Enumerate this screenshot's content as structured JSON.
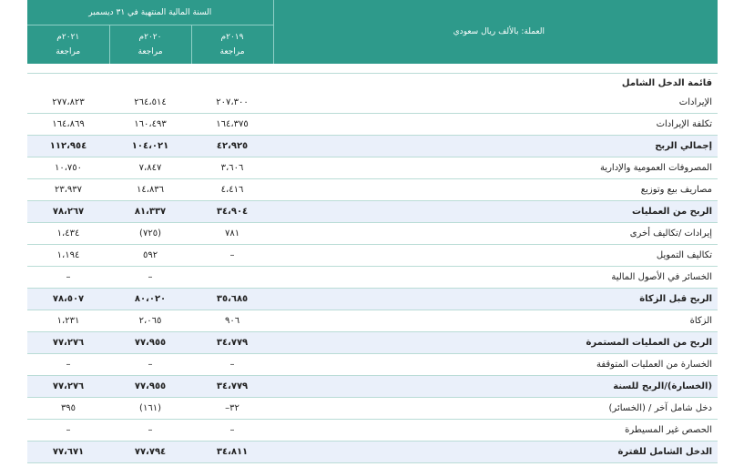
{
  "header": {
    "currency_label": "العملة: بالألف ريال سعودي",
    "period_label": "السنة المالية المنتهية في ٣١ ديسمبر",
    "years": [
      {
        "year": "٢٠١٩م",
        "status": "مراجعة"
      },
      {
        "year": "٢٠٢٠م",
        "status": "مراجعة"
      },
      {
        "year": "٢٠٢١م",
        "status": "مراجعة"
      }
    ]
  },
  "section_title": "قائمة الدخل الشامل",
  "rows": [
    {
      "label": "الإيرادات",
      "v2019": "٢٠٧،٣٠٠",
      "v2020": "٢٦٤،٥١٤",
      "v2021": "٢٧٧،٨٢٣",
      "bold": false
    },
    {
      "label": "تكلفة الإيرادات",
      "v2019": "١٦٤،٣٧٥",
      "v2020": "١٦٠،٤٩٣",
      "v2021": "١٦٤،٨٦٩",
      "bold": false
    },
    {
      "label": "إجمالي الربح",
      "v2019": "٤٢،٩٢٥",
      "v2020": "١٠٤،٠٢١",
      "v2021": "١١٢،٩٥٤",
      "bold": true
    },
    {
      "label": "المصروفات العمومية والإدارية",
      "v2019": "٣،٦٠٦",
      "v2020": "٧،٨٤٧",
      "v2021": "١٠،٧٥٠",
      "bold": false
    },
    {
      "label": "مصاريف بيع وتوزيع",
      "v2019": "٤،٤١٦",
      "v2020": "١٤،٨٣٦",
      "v2021": "٢٣،٩٣٧",
      "bold": false
    },
    {
      "label": "الربح من العمليات",
      "v2019": "٣٤،٩٠٤",
      "v2020": "٨١،٣٣٧",
      "v2021": "٧٨،٢٦٧",
      "bold": true
    },
    {
      "label": "إيرادات /تكاليف أخرى",
      "v2019": "٧٨١",
      "v2020": "(٧٢٥)",
      "v2021": "١،٤٣٤",
      "bold": false
    },
    {
      "label": "تكاليف التمويل",
      "v2019": "–",
      "v2020": "٥٩٢",
      "v2021": "١،١٩٤",
      "bold": false
    },
    {
      "label": "الخسائر في الأصول المالية",
      "v2019": "",
      "v2020": "–",
      "v2021": "–",
      "bold": false
    },
    {
      "label": "الربح قبل الزكاة",
      "v2019": "٣٥،٦٨٥",
      "v2020": "٨٠،٠٢٠",
      "v2021": "٧٨،٥٠٧",
      "bold": true
    },
    {
      "label": "الزكاة",
      "v2019": "٩٠٦",
      "v2020": "٢،٠٦٥",
      "v2021": "١،٢٣١",
      "bold": false
    },
    {
      "label": "الربح من العمليات المستمرة",
      "v2019": "٣٤،٧٧٩",
      "v2020": "٧٧،٩٥٥",
      "v2021": "٧٧،٢٧٦",
      "bold": true
    },
    {
      "label": "الخسارة من العمليات المتوقفة",
      "v2019": "–",
      "v2020": "–",
      "v2021": "–",
      "bold": false
    },
    {
      "label": "(الخسارة)/الربح للسنة",
      "v2019": "٣٤،٧٧٩",
      "v2020": "٧٧،٩٥٥",
      "v2021": "٧٧،٢٧٦",
      "bold": true
    },
    {
      "label": "دخل شامل آخر / (الخسائر)",
      "v2019": "٣٢–",
      "v2020": "(١٦١)",
      "v2021": "٣٩٥",
      "bold": false
    },
    {
      "label": "الحصص غير المسيطرة",
      "v2019": "–",
      "v2020": "–",
      "v2021": "–",
      "bold": false
    },
    {
      "label": "الدخل الشامل للفترة",
      "v2019": "٣٤،٨١١",
      "v2020": "٧٧،٧٩٤",
      "v2021": "٧٧،٦٧١",
      "bold": true
    }
  ],
  "colors": {
    "header_bg": "#2e9a8b",
    "highlight_row": "#eaf0fa",
    "rule": "#b9dcd6"
  }
}
